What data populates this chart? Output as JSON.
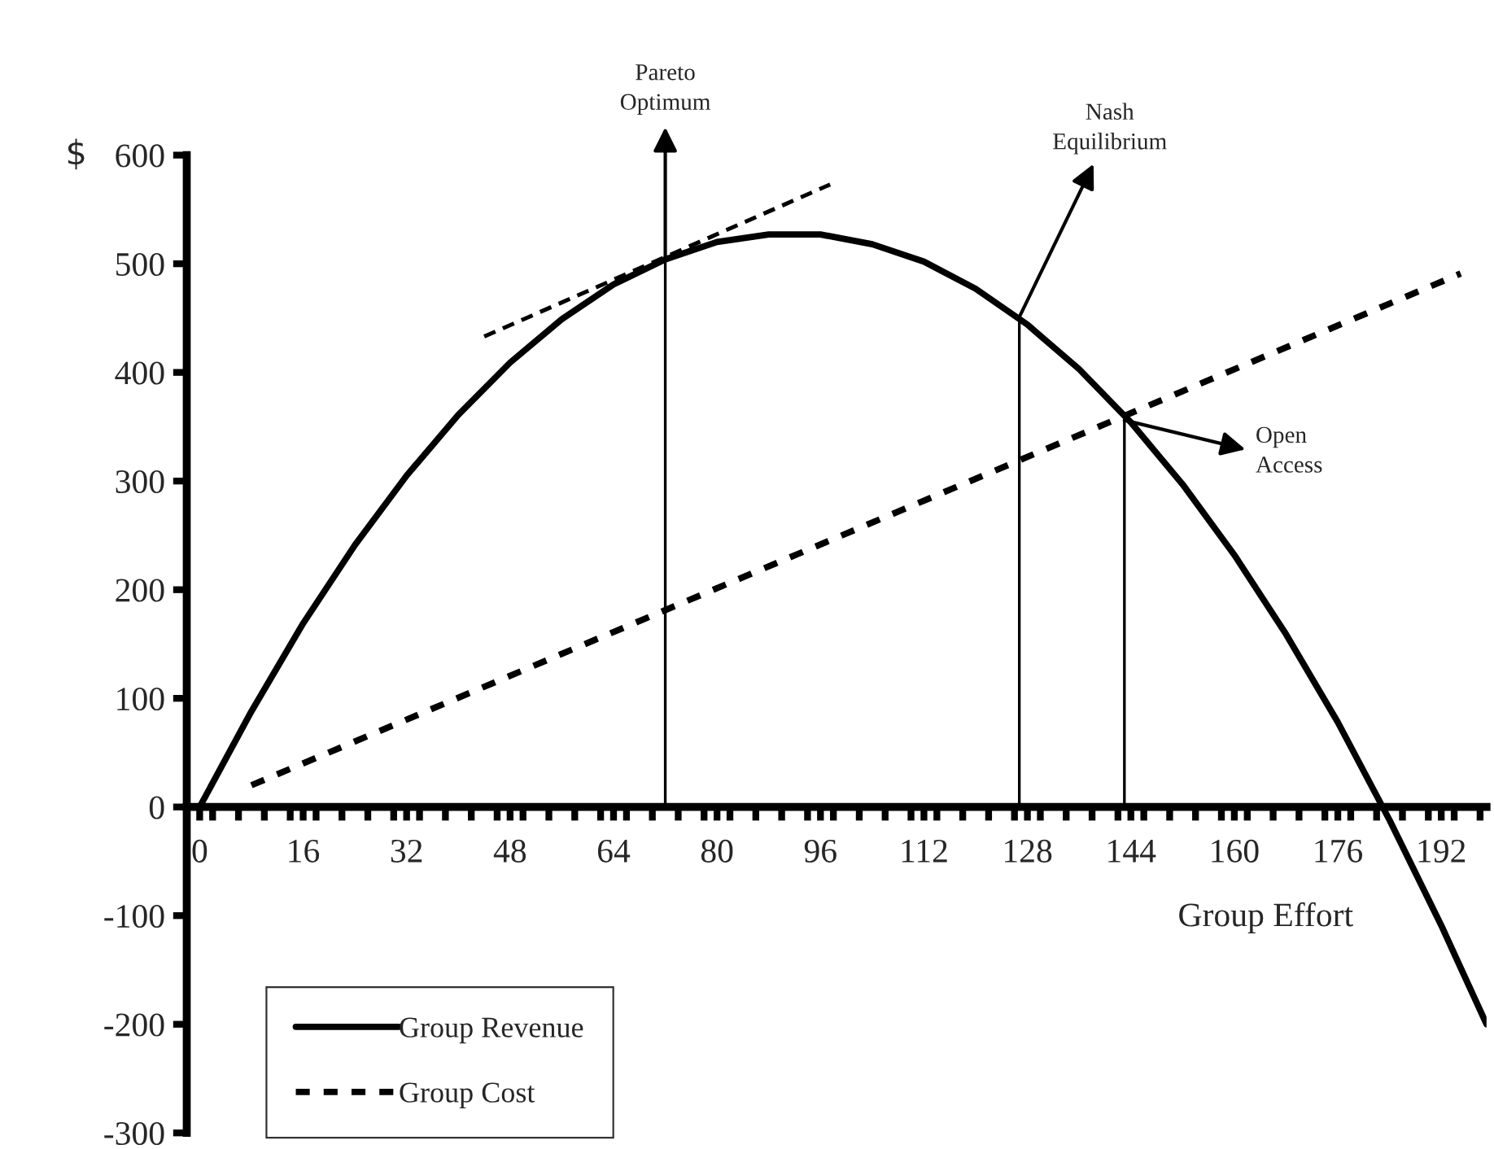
{
  "chart_data": {
    "type": "line",
    "xlabel": "Group Effort",
    "ylabel": "$",
    "series": [
      {
        "name": "Group Revenue",
        "color": "#000000",
        "line_style": "solid",
        "x": [
          0,
          8,
          16,
          24,
          32,
          40,
          48,
          56,
          64,
          72,
          80,
          88,
          96,
          104,
          112,
          120,
          128,
          136,
          144,
          152,
          160,
          168,
          176,
          184,
          192,
          199
        ],
        "values": [
          0,
          88,
          169,
          241,
          305,
          361,
          409,
          449,
          481,
          504,
          520,
          527,
          527,
          518,
          502,
          477,
          444,
          403,
          354,
          297,
          232,
          159,
          78,
          -12,
          -109,
          -200
        ]
      },
      {
        "name": "Group Cost",
        "color": "#000000",
        "line_style": "dashed",
        "x": [
          8,
          195
        ],
        "values": [
          20,
          491
        ]
      },
      {
        "color": "#000000",
        "line_style": "dashed",
        "x": [
          44,
          97.5
        ],
        "values": [
          433,
          573
        ]
      },
      {
        "color": "#000000",
        "line_style": "solid",
        "x": [
          72,
          72
        ],
        "values": [
          0,
          504
        ]
      },
      {
        "color": "#000000",
        "line_style": "solid",
        "x": [
          126.75,
          126.75
        ],
        "values": [
          0,
          451
        ]
      },
      {
        "color": "#000000",
        "line_style": "solid",
        "x": [
          143,
          143
        ],
        "values": [
          0,
          356
        ]
      }
    ],
    "annotations": [
      {
        "text": "Pareto Optimum",
        "x": 72,
        "y": 504
      },
      {
        "text": "Nash Equilibrium",
        "x": 126.75,
        "y": 451
      },
      {
        "text": "Open Access",
        "x": 143,
        "y": 356
      }
    ],
    "xlim": [
      -2,
      199
    ],
    "ylim": [
      -300,
      600
    ],
    "xticks": [
      0,
      16,
      32,
      48,
      64,
      80,
      96,
      112,
      128,
      144,
      160,
      176,
      192,
      {
        "value": 2,
        "label": null
      },
      {
        "value": 6,
        "label": null
      },
      {
        "value": 10,
        "label": null
      },
      {
        "value": 14,
        "label": null
      },
      {
        "value": 18,
        "label": null
      },
      {
        "value": 22,
        "label": null
      },
      {
        "value": 26,
        "label": null
      },
      {
        "value": 30,
        "label": null
      },
      {
        "value": 34,
        "label": null
      },
      {
        "value": 38,
        "label": null
      },
      {
        "value": 42,
        "label": null
      },
      {
        "value": 46,
        "label": null
      },
      {
        "value": 50,
        "label": null
      },
      {
        "value": 54,
        "label": null
      },
      {
        "value": 58,
        "label": null
      },
      {
        "value": 62,
        "label": null
      },
      {
        "value": 66,
        "label": null
      },
      {
        "value": 70,
        "label": null
      },
      {
        "value": 74,
        "label": null
      },
      {
        "value": 78,
        "label": null
      },
      {
        "value": 82,
        "label": null
      },
      {
        "value": 86,
        "label": null
      },
      {
        "value": 90,
        "label": null
      },
      {
        "value": 94,
        "label": null
      },
      {
        "value": 98,
        "label": null
      },
      {
        "value": 102,
        "label": null
      },
      {
        "value": 106,
        "label": null
      },
      {
        "value": 110,
        "label": null
      },
      {
        "value": 114,
        "label": null
      },
      {
        "value": 118,
        "label": null
      },
      {
        "value": 122,
        "label": null
      },
      {
        "value": 126,
        "label": null
      },
      {
        "value": 130,
        "label": null
      },
      {
        "value": 134,
        "label": null
      },
      {
        "value": 138,
        "label": null
      },
      {
        "value": 142,
        "label": null
      },
      {
        "value": 146,
        "label": null
      },
      {
        "value": 150,
        "label": null
      },
      {
        "value": 154,
        "label": null
      },
      {
        "value": 158,
        "label": null
      },
      {
        "value": 162,
        "label": null
      },
      {
        "value": 166,
        "label": null
      },
      {
        "value": 170,
        "label": null
      },
      {
        "value": 174,
        "label": null
      },
      {
        "value": 178,
        "label": null
      },
      {
        "value": 182,
        "label": null
      },
      {
        "value": 186,
        "label": null
      },
      {
        "value": 190,
        "label": null
      },
      {
        "value": 194,
        "label": null
      },
      {
        "value": 198,
        "label": null
      }
    ],
    "yticks": [
      -300,
      -200,
      -100,
      0,
      100,
      200,
      300,
      400,
      500,
      600
    ],
    "grid": false,
    "legend": "bottom left",
    "marker": "none"
  }
}
